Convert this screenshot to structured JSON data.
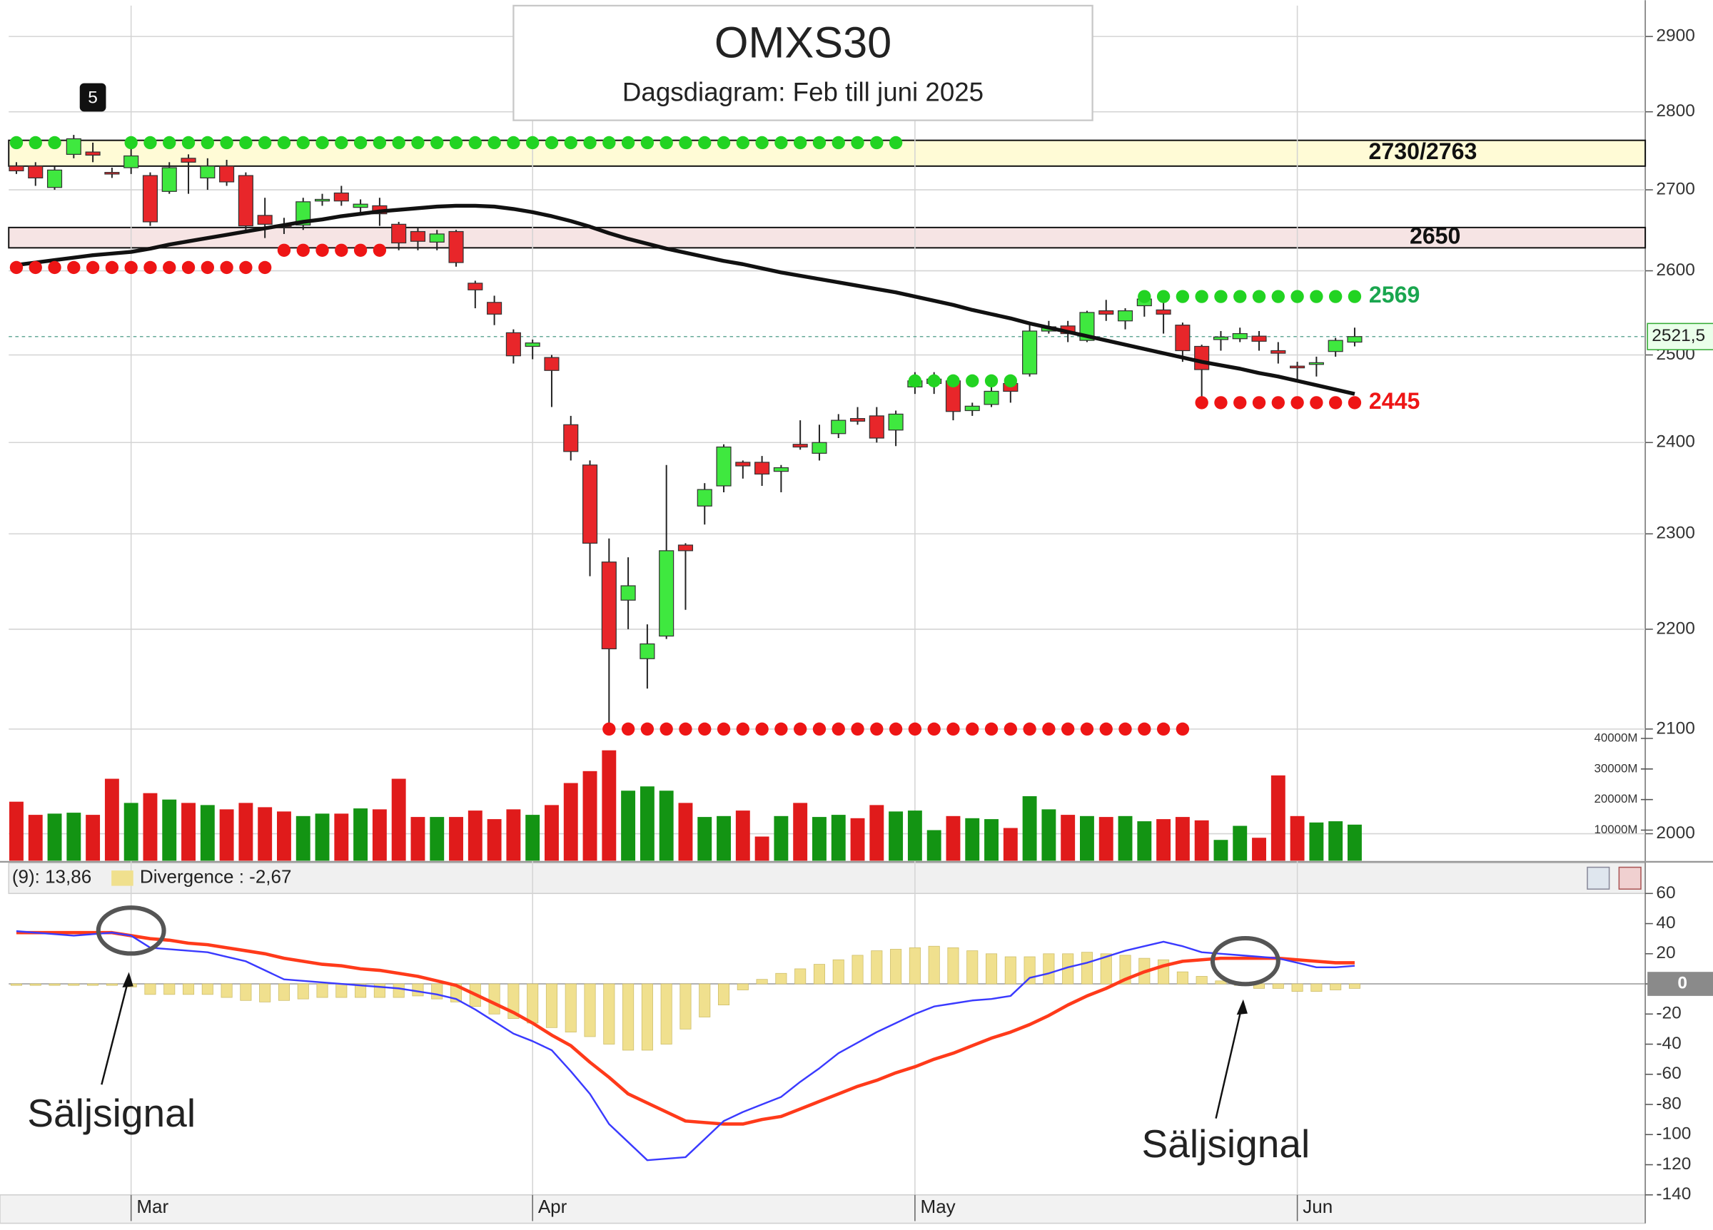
{
  "chart_data": [
    {
      "type": "candlestick",
      "title": "OMXS30",
      "subtitle": "Dagsdiagram:  Feb till juni 2025",
      "log": true,
      "grid": true,
      "categories": [
        null,
        null,
        null,
        null,
        null,
        null,
        "Mar",
        null,
        null,
        null,
        null,
        null,
        null,
        null,
        null,
        null,
        null,
        null,
        null,
        null,
        null,
        null,
        null,
        null,
        null,
        null,
        null,
        "Apr",
        null,
        null,
        null,
        null,
        null,
        null,
        null,
        null,
        null,
        null,
        null,
        null,
        null,
        null,
        null,
        null,
        null,
        null,
        null,
        "May",
        null,
        null,
        null,
        null,
        null,
        null,
        null,
        null,
        null,
        null,
        null,
        null,
        null,
        null,
        null,
        null,
        null,
        null,
        null,
        "Jun",
        null,
        null,
        null
      ],
      "open": [
        2730,
        2730,
        2703,
        2745,
        2748,
        2722,
        2728,
        2718,
        2698,
        2740,
        2715,
        2730,
        2718,
        2668,
        2656,
        2656,
        2686,
        2696,
        2678,
        2680,
        2657,
        2648,
        2635,
        2648,
        2585,
        2562,
        2526,
        2510,
        2497,
        2420,
        2375,
        2270,
        2230,
        2170,
        2193,
        2288,
        2330,
        2352,
        2378,
        2378,
        2368,
        2398,
        2388,
        2410,
        2427,
        2430,
        2414,
        2463,
        2467,
        2470,
        2436,
        2443,
        2467,
        2478,
        2528,
        2534,
        2517,
        2552,
        2540,
        2558,
        2553,
        2535,
        2510,
        2518,
        2519,
        2522,
        2505,
        2487,
        2489,
        2504,
        2515
      ],
      "high": [
        2735,
        2735,
        2730,
        2770,
        2760,
        2728,
        2752,
        2722,
        2735,
        2745,
        2740,
        2738,
        2722,
        2690,
        2665,
        2690,
        2695,
        2705,
        2688,
        2690,
        2660,
        2652,
        2650,
        2650,
        2588,
        2570,
        2530,
        2518,
        2500,
        2430,
        2380,
        2295,
        2275,
        2205,
        2375,
        2290,
        2355,
        2398,
        2380,
        2385,
        2375,
        2425,
        2420,
        2432,
        2440,
        2440,
        2436,
        2480,
        2480,
        2472,
        2445,
        2470,
        2475,
        2535,
        2540,
        2540,
        2552,
        2565,
        2555,
        2575,
        2565,
        2538,
        2512,
        2528,
        2532,
        2528,
        2515,
        2492,
        2498,
        2520,
        2532
      ],
      "low": [
        2720,
        2705,
        2700,
        2740,
        2735,
        2715,
        2720,
        2655,
        2695,
        2695,
        2700,
        2705,
        2650,
        2640,
        2645,
        2650,
        2680,
        2680,
        2670,
        2655,
        2625,
        2625,
        2625,
        2605,
        2555,
        2535,
        2490,
        2495,
        2440,
        2380,
        2255,
        2100,
        2200,
        2140,
        2190,
        2220,
        2310,
        2345,
        2360,
        2352,
        2345,
        2392,
        2380,
        2405,
        2420,
        2400,
        2396,
        2455,
        2455,
        2425,
        2430,
        2440,
        2445,
        2475,
        2525,
        2515,
        2515,
        2540,
        2530,
        2545,
        2525,
        2492,
        2452,
        2505,
        2515,
        2505,
        2490,
        2470,
        2475,
        2498,
        2510
      ],
      "close": [
        2724,
        2715,
        2725,
        2765,
        2744,
        2720,
        2743,
        2660,
        2728,
        2735,
        2730,
        2710,
        2655,
        2657,
        2655,
        2685,
        2688,
        2686,
        2682,
        2670,
        2634,
        2636,
        2645,
        2610,
        2577,
        2548,
        2499,
        2514,
        2482,
        2390,
        2290,
        2180,
        2245,
        2185,
        2282,
        2282,
        2348,
        2395,
        2374,
        2365,
        2372,
        2395,
        2400,
        2425,
        2424,
        2405,
        2432,
        2470,
        2472,
        2435,
        2441,
        2458,
        2458,
        2528,
        2533,
        2525,
        2550,
        2548,
        2552,
        2566,
        2548,
        2505,
        2483,
        2521,
        2525,
        2516,
        2502,
        2485,
        2491,
        2517,
        2521.5
      ],
      "up_color": "#3fe83f",
      "down_color": "#e8262a",
      "volume": [
        19300,
        15000,
        15400,
        15700,
        15000,
        26800,
        18900,
        22100,
        20000,
        18900,
        18200,
        16800,
        18900,
        17500,
        16100,
        14600,
        15400,
        15400,
        17100,
        16800,
        26800,
        14300,
        14300,
        14300,
        16400,
        13600,
        16800,
        15000,
        18200,
        25400,
        29300,
        36100,
        22900,
        24300,
        22900,
        18900,
        14300,
        14600,
        16400,
        7900,
        14600,
        18900,
        14300,
        15000,
        13900,
        18200,
        16100,
        16400,
        10000,
        14600,
        13900,
        13600,
        10700,
        21100,
        16800,
        15000,
        14600,
        14300,
        14600,
        12900,
        13600,
        14300,
        13200,
        6800,
        11400,
        7500,
        27900,
        14600,
        12500,
        12900,
        11800
      ],
      "volume_up_color": "#139413",
      "volume_down_color": "#e01b1b",
      "ylim": [
        1975,
        2942
      ],
      "yticks": [
        2000,
        2100,
        2200,
        2300,
        2400,
        2500,
        2600,
        2700,
        2800,
        2900
      ],
      "volume_lim": [
        0,
        40000
      ],
      "volume_ticks": [
        {
          "value": 10000,
          "label": "10000M"
        },
        {
          "value": 20000,
          "label": "20000M"
        },
        {
          "value": 30000,
          "label": "30000M"
        },
        {
          "value": 40000,
          "label": "40000M"
        }
      ],
      "moving_average": {
        "color": "#111111",
        "values": [
          2607,
          2610,
          2613,
          2616,
          2619,
          2621,
          2623,
          2627,
          2632,
          2636,
          2640,
          2644,
          2648,
          2652,
          2656,
          2660,
          2663,
          2667,
          2670,
          2673,
          2675,
          2677,
          2679,
          2680,
          2680,
          2679,
          2676,
          2672,
          2667,
          2661,
          2654,
          2646,
          2639,
          2633,
          2627,
          2622,
          2617,
          2612,
          2608,
          2603,
          2598,
          2594,
          2590,
          2586,
          2582,
          2578,
          2574,
          2569,
          2564,
          2559,
          2553,
          2548,
          2543,
          2537,
          2532,
          2527,
          2522,
          2517,
          2512,
          2507,
          2502,
          2497,
          2492,
          2488,
          2484,
          2479,
          2475,
          2470,
          2465,
          2460,
          2455
        ]
      },
      "last_price": {
        "value": 2521.5,
        "label": "2521,5"
      },
      "zones": [
        {
          "low": 2730,
          "high": 2763,
          "label": "2730/2763",
          "color": "#fffbd6"
        },
        {
          "low": 2628,
          "high": 2653,
          "label": "2650",
          "color": "#f6e4e4"
        }
      ],
      "dot_levels": [
        {
          "value": 2760,
          "color": "#22d322",
          "from": 0,
          "to": 2
        },
        {
          "value": 2760,
          "color": "#22d322",
          "from": 6,
          "to": 46
        },
        {
          "value": 2604,
          "color": "#ee1515",
          "from": 0,
          "to": 13
        },
        {
          "value": 2625,
          "color": "#ee1515",
          "from": 14,
          "to": 19
        },
        {
          "value": 2470,
          "color": "#22d322",
          "from": 47,
          "to": 52
        },
        {
          "value": 2569,
          "label": "2569",
          "color": "#22d322",
          "label_color": "#1aa64f",
          "from": 59,
          "to": 70
        },
        {
          "value": 2445,
          "label": "2445",
          "color": "#ee1515",
          "from": 62,
          "to": 70
        },
        {
          "value": 2100,
          "color": "#ee1515",
          "from": 31,
          "to": 61
        }
      ],
      "marker_label": "5"
    },
    {
      "type": "macd",
      "header": "(9): 13,86",
      "divergence_label": "Divergence : -2,67",
      "ylim": [
        -140,
        60
      ],
      "yticks": [
        60,
        40,
        20,
        0,
        -20,
        -40,
        -60,
        -80,
        -100,
        -120,
        -140
      ],
      "macd": {
        "color": "#3a3aff",
        "values": [
          35,
          34,
          33,
          32,
          33,
          34,
          32,
          24,
          23,
          22,
          21,
          18,
          15,
          9,
          3,
          2,
          1,
          0,
          -1,
          -2,
          -3,
          -5,
          -7,
          -10,
          -17,
          -25,
          -33,
          -38,
          -44,
          -58,
          -73,
          -93,
          -105,
          -117,
          -116,
          -115,
          -103,
          -91,
          -85,
          -80,
          -75,
          -65,
          -56,
          -46,
          -39,
          -32,
          -26,
          -20,
          -15,
          -13,
          -11,
          -10,
          -8,
          4,
          7,
          11,
          14,
          18,
          22,
          25,
          28,
          25,
          21,
          20,
          19,
          18,
          17,
          14,
          11,
          11,
          12
        ]
      },
      "signal": {
        "color": "#ff3a1a",
        "values": [
          34,
          34,
          34,
          34,
          34,
          34,
          32,
          30,
          29,
          27,
          26,
          24,
          22,
          20,
          17,
          15,
          13,
          12,
          10,
          9,
          7,
          5,
          2,
          -1,
          -7,
          -13,
          -19,
          -26,
          -34,
          -41,
          -52,
          -62,
          -73,
          -79,
          -85,
          -91,
          -92,
          -93,
          -93,
          -90,
          -88,
          -83,
          -78,
          -73,
          -68,
          -64,
          -59,
          -55,
          -50,
          -46,
          -41,
          -36,
          -32,
          -27,
          -21,
          -14,
          -8,
          -3,
          3,
          8,
          12,
          15,
          16,
          17,
          17,
          17,
          17,
          16,
          15,
          14,
          14
        ]
      },
      "histogram": {
        "color": "#f0e08e",
        "values": [
          -1,
          -1,
          -1,
          -1,
          -1,
          -1,
          -2,
          -7,
          -7,
          -7,
          -7,
          -9,
          -11,
          -12,
          -11,
          -10,
          -9,
          -9,
          -9,
          -9,
          -9,
          -8,
          -10,
          -12,
          -15,
          -20,
          -23,
          -26,
          -29,
          -32,
          -35,
          -40,
          -44,
          -44,
          -40,
          -30,
          -22,
          -14,
          -4,
          3,
          7,
          10,
          13,
          16,
          19,
          22,
          23,
          24,
          25,
          24,
          22,
          20,
          18,
          18,
          20,
          20,
          21,
          20,
          19,
          17,
          16,
          8,
          5,
          2,
          -1,
          -3,
          -3,
          -5,
          -5,
          -4,
          -3
        ]
      },
      "annotations": [
        "Säljsignal",
        "Säljsignal"
      ]
    }
  ]
}
